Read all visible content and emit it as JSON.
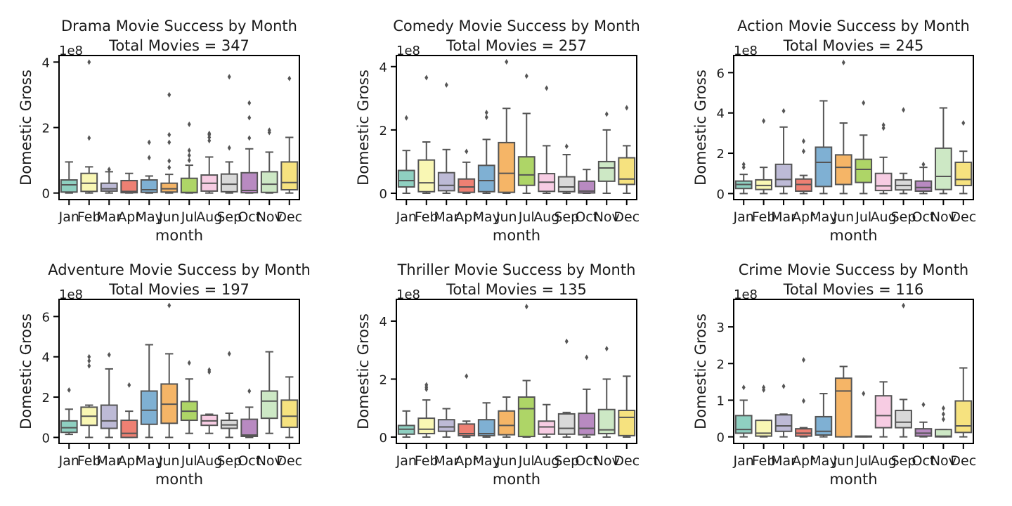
{
  "chart_data": [
    {
      "type": "box",
      "title": "Drama Movie Success by Month",
      "subtitle": "Total Movies = 347",
      "xlabel": "month",
      "ylabel": "Domestic Gross",
      "yscale_label": "1e8",
      "ylim": [
        -0.2,
        4.2
      ],
      "yticks": [
        0,
        2,
        4
      ],
      "categories": [
        "Jan",
        "Feb",
        "Mar",
        "Apr",
        "May",
        "Jun",
        "Jul",
        "Aug",
        "Sep",
        "Oct",
        "Nov",
        "Dec"
      ],
      "boxes": [
        {
          "whislo": 0,
          "q1": 0.03,
          "med": 0.25,
          "q3": 0.4,
          "whishi": 0.95,
          "fliers": []
        },
        {
          "whislo": 0,
          "q1": 0.05,
          "med": 0.3,
          "q3": 0.6,
          "whishi": 0.8,
          "fliers": [
            1.68,
            4.0
          ]
        },
        {
          "whislo": 0,
          "q1": 0.06,
          "med": 0.13,
          "q3": 0.3,
          "whishi": 0.65,
          "fliers": [
            0.72
          ]
        },
        {
          "whislo": 0,
          "q1": 0.01,
          "med": 0.05,
          "q3": 0.38,
          "whishi": 0.6,
          "fliers": []
        },
        {
          "whislo": 0,
          "q1": 0.02,
          "med": 0.1,
          "q3": 0.4,
          "whishi": 0.52,
          "fliers": [
            1.08,
            1.55
          ]
        },
        {
          "whislo": 0,
          "q1": 0.03,
          "med": 0.13,
          "q3": 0.3,
          "whishi": 0.57,
          "fliers": [
            0.78,
            0.98,
            1.55,
            1.78,
            3.0
          ]
        },
        {
          "whislo": 0,
          "q1": 0.01,
          "med": 0.02,
          "q3": 0.45,
          "whishi": 0.85,
          "fliers": [
            1.0,
            1.15,
            1.3,
            2.1
          ]
        },
        {
          "whislo": 0,
          "q1": 0.06,
          "med": 0.3,
          "q3": 0.55,
          "whishi": 1.1,
          "fliers": [
            1.6,
            1.7,
            1.78,
            1.82
          ]
        },
        {
          "whislo": 0,
          "q1": 0.04,
          "med": 0.27,
          "q3": 0.58,
          "whishi": 0.95,
          "fliers": [
            1.38,
            3.55
          ]
        },
        {
          "whislo": 0,
          "q1": 0.01,
          "med": 0.08,
          "q3": 0.62,
          "whishi": 1.35,
          "fliers": [
            1.68,
            2.3,
            2.75
          ]
        },
        {
          "whislo": 0,
          "q1": 0.02,
          "med": 0.27,
          "q3": 0.65,
          "whishi": 1.25,
          "fliers": [
            1.85,
            1.92
          ]
        },
        {
          "whislo": 0,
          "q1": 0.1,
          "med": 0.32,
          "q3": 0.95,
          "whishi": 1.7,
          "fliers": [
            3.5
          ]
        }
      ]
    },
    {
      "type": "box",
      "title": "Comedy Movie Success by Month",
      "subtitle": "Total Movies = 257",
      "xlabel": "month",
      "ylabel": "Domestic Gross",
      "yscale_label": "1e8",
      "ylim": [
        -0.2,
        4.35
      ],
      "yticks": [
        0,
        2,
        4
      ],
      "categories": [
        "Jan",
        "Feb",
        "Mar",
        "Apr",
        "May",
        "Jun",
        "Jul",
        "Aug",
        "Sep",
        "Oct",
        "Nov",
        "Dec"
      ],
      "boxes": [
        {
          "whislo": 0,
          "q1": 0.2,
          "med": 0.4,
          "q3": 0.72,
          "whishi": 1.35,
          "fliers": [
            2.38
          ]
        },
        {
          "whislo": 0,
          "q1": 0.05,
          "med": 0.33,
          "q3": 1.05,
          "whishi": 1.62,
          "fliers": [
            3.65
          ]
        },
        {
          "whislo": 0,
          "q1": 0.08,
          "med": 0.25,
          "q3": 0.65,
          "whishi": 1.38,
          "fliers": [
            3.42
          ]
        },
        {
          "whislo": 0,
          "q1": 0.03,
          "med": 0.2,
          "q3": 0.45,
          "whishi": 0.98,
          "fliers": [
            1.32
          ]
        },
        {
          "whislo": 0,
          "q1": 0.05,
          "med": 0.4,
          "q3": 0.88,
          "whishi": 1.7,
          "fliers": [
            2.4,
            2.55
          ]
        },
        {
          "whislo": 0,
          "q1": 0.03,
          "med": 0.63,
          "q3": 1.6,
          "whishi": 2.68,
          "fliers": [
            4.15
          ]
        },
        {
          "whislo": 0,
          "q1": 0.25,
          "med": 0.58,
          "q3": 1.15,
          "whishi": 2.52,
          "fliers": [
            3.7
          ]
        },
        {
          "whislo": 0,
          "q1": 0.06,
          "med": 0.35,
          "q3": 0.62,
          "whishi": 1.5,
          "fliers": [
            3.32
          ]
        },
        {
          "whislo": 0,
          "q1": 0.05,
          "med": 0.2,
          "q3": 0.52,
          "whishi": 1.22,
          "fliers": [
            1.48
          ]
        },
        {
          "whislo": 0,
          "q1": 0.01,
          "med": 0.07,
          "q3": 0.38,
          "whishi": 0.75,
          "fliers": []
        },
        {
          "whislo": 0,
          "q1": 0.38,
          "med": 0.8,
          "q3": 1.0,
          "whishi": 2.0,
          "fliers": [
            2.5
          ]
        },
        {
          "whislo": 0,
          "q1": 0.28,
          "med": 0.45,
          "q3": 1.12,
          "whishi": 1.5,
          "fliers": [
            2.7
          ]
        }
      ]
    },
    {
      "type": "box",
      "title": "Action Movie Success by Month",
      "subtitle": "Total Movies = 245",
      "xlabel": "month",
      "ylabel": "Domestic Gross",
      "yscale_label": "1e8",
      "ylim": [
        -0.3,
        6.85
      ],
      "yticks": [
        0,
        2,
        4,
        6
      ],
      "categories": [
        "Jan",
        "Feb",
        "Mar",
        "Apr",
        "May",
        "Jun",
        "Jul",
        "Aug",
        "Sep",
        "Oct",
        "Nov",
        "Dec"
      ],
      "boxes": [
        {
          "whislo": 0,
          "q1": 0.25,
          "med": 0.45,
          "q3": 0.62,
          "whishi": 0.95,
          "fliers": [
            1.3,
            1.45
          ]
        },
        {
          "whislo": 0,
          "q1": 0.2,
          "med": 0.4,
          "q3": 0.68,
          "whishi": 1.3,
          "fliers": [
            3.6
          ]
        },
        {
          "whislo": 0,
          "q1": 0.35,
          "med": 0.7,
          "q3": 1.45,
          "whishi": 3.3,
          "fliers": [
            4.1
          ]
        },
        {
          "whislo": 0,
          "q1": 0.12,
          "med": 0.45,
          "q3": 0.72,
          "whishi": 0.9,
          "fliers": [
            2.1,
            2.6
          ]
        },
        {
          "whislo": 0,
          "q1": 0.35,
          "med": 1.55,
          "q3": 2.3,
          "whishi": 4.6,
          "fliers": []
        },
        {
          "whislo": 0,
          "q1": 0.45,
          "med": 1.3,
          "q3": 1.92,
          "whishi": 3.5,
          "fliers": [
            6.5
          ]
        },
        {
          "whislo": 0,
          "q1": 0.55,
          "med": 1.2,
          "q3": 1.7,
          "whishi": 2.9,
          "fliers": [
            4.5
          ]
        },
        {
          "whislo": 0,
          "q1": 0.15,
          "med": 0.38,
          "q3": 1.0,
          "whishi": 1.8,
          "fliers": [
            3.25,
            3.4
          ]
        },
        {
          "whislo": 0,
          "q1": 0.18,
          "med": 0.4,
          "q3": 0.68,
          "whishi": 1.0,
          "fliers": [
            4.15
          ]
        },
        {
          "whislo": 0,
          "q1": 0.12,
          "med": 0.3,
          "q3": 0.62,
          "whishi": 1.3,
          "fliers": [
            1.45
          ]
        },
        {
          "whislo": 0,
          "q1": 0.2,
          "med": 0.85,
          "q3": 2.25,
          "whishi": 4.25,
          "fliers": []
        },
        {
          "whislo": 0,
          "q1": 0.4,
          "med": 0.7,
          "q3": 1.55,
          "whishi": 2.1,
          "fliers": [
            3.5
          ]
        }
      ]
    },
    {
      "type": "box",
      "title": "Adventure Movie Success by Month",
      "subtitle": "Total Movies = 197",
      "xlabel": "month",
      "ylabel": "Domestic Gross",
      "yscale_label": "1e8",
      "ylim": [
        -0.3,
        6.85
      ],
      "yticks": [
        0,
        2,
        4,
        6
      ],
      "categories": [
        "Jan",
        "Feb",
        "Mar",
        "Apr",
        "May",
        "Jun",
        "Jul",
        "Aug",
        "Sep",
        "Oct",
        "Nov",
        "Dec"
      ],
      "boxes": [
        {
          "whislo": 0.15,
          "q1": 0.25,
          "med": 0.48,
          "q3": 0.82,
          "whishi": 1.4,
          "fliers": [
            2.35
          ]
        },
        {
          "whislo": 0,
          "q1": 0.6,
          "med": 1.05,
          "q3": 1.5,
          "whishi": 1.6,
          "fliers": [
            3.55,
            3.8,
            4.0
          ]
        },
        {
          "whislo": 0,
          "q1": 0.45,
          "med": 0.82,
          "q3": 1.6,
          "whishi": 3.4,
          "fliers": [
            4.1
          ]
        },
        {
          "whislo": 0,
          "q1": 0,
          "med": 0.2,
          "q3": 0.85,
          "whishi": 1.3,
          "fliers": [
            2.6
          ]
        },
        {
          "whislo": 0,
          "q1": 0.65,
          "med": 1.35,
          "q3": 2.3,
          "whishi": 4.6,
          "fliers": []
        },
        {
          "whislo": 0,
          "q1": 0.7,
          "med": 1.65,
          "q3": 2.65,
          "whishi": 4.15,
          "fliers": [
            6.55
          ]
        },
        {
          "whislo": 0.2,
          "q1": 0.85,
          "med": 1.3,
          "q3": 1.78,
          "whishi": 2.9,
          "fliers": [
            3.7
          ]
        },
        {
          "whislo": 0.2,
          "q1": 0.6,
          "med": 0.82,
          "q3": 1.1,
          "whishi": 1.15,
          "fliers": [
            3.25,
            3.35
          ]
        },
        {
          "whislo": 0,
          "q1": 0.45,
          "med": 0.62,
          "q3": 0.85,
          "whishi": 1.2,
          "fliers": [
            4.15
          ]
        },
        {
          "whislo": 0,
          "q1": 0.05,
          "med": 0.12,
          "q3": 0.9,
          "whishi": 1.5,
          "fliers": [
            2.3
          ]
        },
        {
          "whislo": 0.2,
          "q1": 0.95,
          "med": 1.8,
          "q3": 2.3,
          "whishi": 4.25,
          "fliers": []
        },
        {
          "whislo": 0,
          "q1": 0.5,
          "med": 1.05,
          "q3": 1.85,
          "whishi": 3.0,
          "fliers": []
        }
      ]
    },
    {
      "type": "box",
      "title": "Thriller Movie Success by Month",
      "subtitle": "Total Movies = 135",
      "xlabel": "month",
      "ylabel": "Domestic Gross",
      "yscale_label": "1e8",
      "ylim": [
        -0.22,
        4.75
      ],
      "yticks": [
        0,
        2,
        4
      ],
      "categories": [
        "Jan",
        "Feb",
        "Mar",
        "Apr",
        "May",
        "Jun",
        "Jul",
        "Aug",
        "Sep",
        "Oct",
        "Nov",
        "Dec"
      ],
      "boxes": [
        {
          "whislo": 0,
          "q1": 0.1,
          "med": 0.27,
          "q3": 0.4,
          "whishi": 0.9,
          "fliers": []
        },
        {
          "whislo": 0,
          "q1": 0.12,
          "med": 0.27,
          "q3": 0.65,
          "whishi": 1.28,
          "fliers": [
            1.65,
            1.72,
            1.8
          ]
        },
        {
          "whislo": 0,
          "q1": 0.2,
          "med": 0.35,
          "q3": 0.6,
          "whishi": 0.98,
          "fliers": []
        },
        {
          "whislo": 0,
          "q1": 0.05,
          "med": 0.12,
          "q3": 0.45,
          "whishi": 0.55,
          "fliers": [
            2.1
          ]
        },
        {
          "whislo": 0,
          "q1": 0.05,
          "med": 0.12,
          "q3": 0.6,
          "whishi": 1.18,
          "fliers": []
        },
        {
          "whislo": 0,
          "q1": 0.08,
          "med": 0.4,
          "q3": 0.9,
          "whishi": 1.38,
          "fliers": []
        },
        {
          "whislo": 0,
          "q1": 0.02,
          "med": 0.98,
          "q3": 1.38,
          "whishi": 1.95,
          "fliers": [
            4.5
          ]
        },
        {
          "whislo": 0,
          "q1": 0.1,
          "med": 0.35,
          "q3": 0.55,
          "whishi": 1.12,
          "fliers": []
        },
        {
          "whislo": 0,
          "q1": 0.1,
          "med": 0.3,
          "q3": 0.8,
          "whishi": 0.85,
          "fliers": [
            3.3
          ]
        },
        {
          "whislo": 0,
          "q1": 0.08,
          "med": 0.3,
          "q3": 0.82,
          "whishi": 1.65,
          "fliers": [
            2.75
          ]
        },
        {
          "whislo": 0,
          "q1": 0.12,
          "med": 0.25,
          "q3": 0.95,
          "whishi": 2.0,
          "fliers": [
            3.05
          ]
        },
        {
          "whislo": 0,
          "q1": 0.05,
          "med": 0.68,
          "q3": 0.92,
          "whishi": 2.1,
          "fliers": []
        }
      ]
    },
    {
      "type": "box",
      "title": "Crime Movie Success by Month",
      "subtitle": "Total Movies = 116",
      "xlabel": "month",
      "ylabel": "Domestic Gross",
      "yscale_label": "1e8",
      "ylim": [
        -0.18,
        3.75
      ],
      "yticks": [
        0,
        1,
        2,
        3
      ],
      "categories": [
        "Jan",
        "Feb",
        "Mar",
        "Apr",
        "May",
        "Jun",
        "Jul",
        "Aug",
        "Sep",
        "Oct",
        "Nov",
        "Dec"
      ],
      "boxes": [
        {
          "whislo": 0,
          "q1": 0.1,
          "med": 0.2,
          "q3": 0.58,
          "whishi": 1.0,
          "fliers": [
            1.35
          ]
        },
        {
          "whislo": 0,
          "q1": 0.02,
          "med": 0.1,
          "q3": 0.45,
          "whishi": 0.45,
          "fliers": [
            1.28,
            1.35
          ]
        },
        {
          "whislo": 0,
          "q1": 0.15,
          "med": 0.3,
          "q3": 0.6,
          "whishi": 0.62,
          "fliers": [
            1.38
          ]
        },
        {
          "whislo": 0,
          "q1": 0.02,
          "med": 0.1,
          "q3": 0.22,
          "whishi": 0.25,
          "fliers": [
            0.98,
            2.1
          ]
        },
        {
          "whislo": 0,
          "q1": 0.05,
          "med": 0.15,
          "q3": 0.55,
          "whishi": 1.18,
          "fliers": []
        },
        {
          "whislo": 0,
          "q1": 0,
          "med": 1.25,
          "q3": 1.6,
          "whishi": 1.92,
          "fliers": []
        },
        {
          "whislo": 0,
          "q1": 0,
          "med": 0,
          "q3": 0.02,
          "whishi": 0.02,
          "fliers": [
            1.18
          ]
        },
        {
          "whislo": 0,
          "q1": 0.25,
          "med": 0.58,
          "q3": 1.12,
          "whishi": 1.5,
          "fliers": []
        },
        {
          "whislo": 0,
          "q1": 0.25,
          "med": 0.4,
          "q3": 0.72,
          "whishi": 1.02,
          "fliers": [
            3.58
          ]
        },
        {
          "whislo": 0,
          "q1": 0.02,
          "med": 0.1,
          "q3": 0.22,
          "whishi": 0.4,
          "fliers": [
            0.88
          ]
        },
        {
          "whislo": 0,
          "q1": 0,
          "med": 0.02,
          "q3": 0.2,
          "whishi": 0.2,
          "fliers": [
            0.48,
            0.62,
            0.78
          ]
        },
        {
          "whislo": 0,
          "q1": 0.12,
          "med": 0.3,
          "q3": 0.98,
          "whishi": 1.88,
          "fliers": []
        }
      ]
    }
  ],
  "colors": {
    "box_fills": [
      "#8fd0c1",
      "#f9f7b4",
      "#bdbad6",
      "#ee8073",
      "#7fb0d3",
      "#f5b567",
      "#aed567",
      "#f7cce3",
      "#d9d9d9",
      "#b88ac1",
      "#cde8c5",
      "#f6e27f"
    ],
    "line": "#555555",
    "axis": "#000000"
  }
}
